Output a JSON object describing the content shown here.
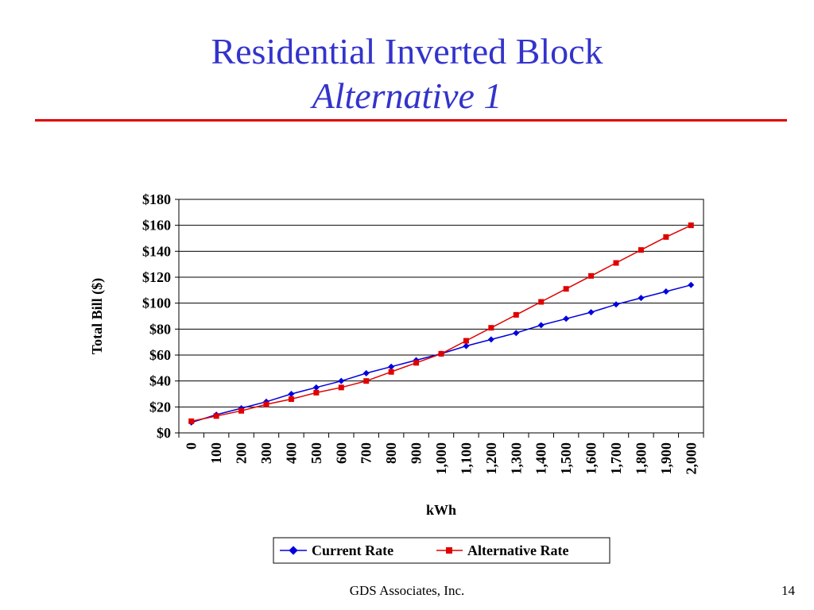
{
  "slide": {
    "title_line1": "Residential Inverted Block",
    "title_line2": "Alternative 1",
    "footer_company": "GDS Associates, Inc.",
    "page_number": "14"
  },
  "colors": {
    "title": "#3333cc",
    "rule": "#e00000",
    "current": "#0000dd",
    "alternative": "#e00000"
  },
  "chart_data": {
    "type": "line",
    "xlabel": "kWh",
    "ylabel": "Total Bill ($)",
    "ylim": [
      0,
      180
    ],
    "y_ticks": [
      0,
      20,
      40,
      60,
      80,
      100,
      120,
      140,
      160,
      180
    ],
    "y_tick_labels": [
      "$0",
      "$20",
      "$40",
      "$60",
      "$80",
      "$100",
      "$120",
      "$140",
      "$160",
      "$180"
    ],
    "grid": "horizontal",
    "legend_position": "bottom",
    "categories": [
      "0",
      "100",
      "200",
      "300",
      "400",
      "500",
      "600",
      "700",
      "800",
      "900",
      "1,000",
      "1,100",
      "1,200",
      "1,300",
      "1,400",
      "1,500",
      "1,600",
      "1,700",
      "1,800",
      "1,900",
      "2,000"
    ],
    "series": [
      {
        "name": "Current Rate",
        "marker": "diamond",
        "values": [
          8,
          14,
          19,
          24,
          30,
          35,
          40,
          46,
          51,
          56,
          61,
          67,
          72,
          77,
          83,
          88,
          93,
          99,
          104,
          109,
          114
        ]
      },
      {
        "name": "Alternative Rate",
        "marker": "square",
        "values": [
          9,
          13,
          17,
          22,
          26,
          31,
          35,
          40,
          47,
          54,
          61,
          71,
          81,
          91,
          101,
          111,
          121,
          131,
          141,
          151,
          160
        ]
      }
    ]
  }
}
